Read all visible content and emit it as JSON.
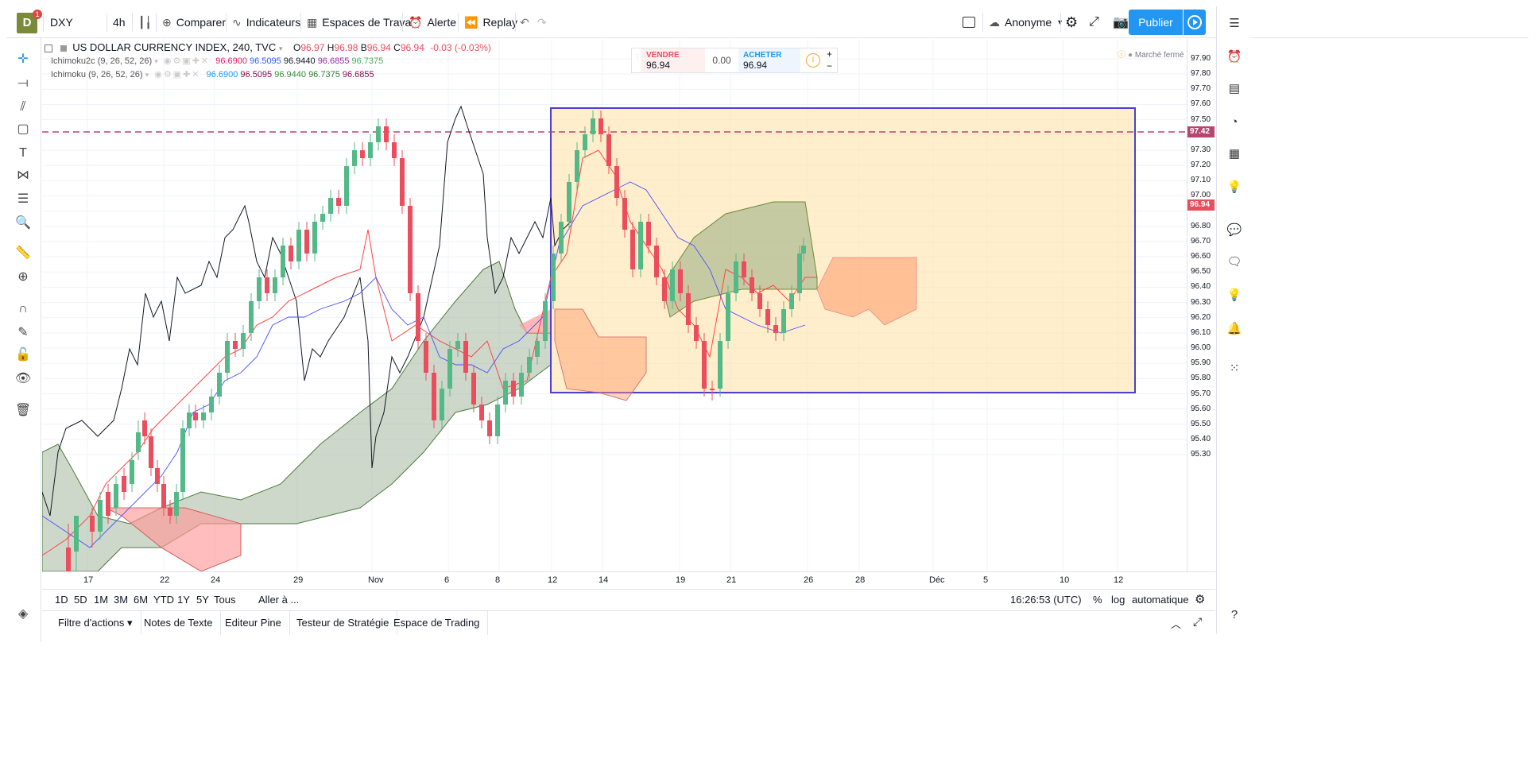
{
  "logo": {
    "letter": "D",
    "badge": "1"
  },
  "topbar": {
    "symbol": "DXY",
    "interval": "4h",
    "compare": "Comparer",
    "indicators": "Indicateurs",
    "workspaces": "Espaces de Travail",
    "alert": "Alerte",
    "replay": "Replay",
    "account": "Anonyme",
    "publish": "Publier"
  },
  "legend": {
    "title": "US DOLLAR CURRENCY INDEX, 240, TVC",
    "o_label": "O",
    "o": "96.97",
    "h_label": "H",
    "h": "96.98",
    "b_label": "B",
    "b": "96.94",
    "c_label": "C",
    "c": "96.94",
    "change": "-0.03 (-0.03%)",
    "ind1_name": "Ichimoku2c (9, 26, 52, 26)",
    "ind1_vals": [
      "96.6900",
      "96.5095",
      "96.9440",
      "96.6855",
      "96.7375"
    ],
    "ind2_name": "Ichimoku (9, 26, 52, 26)",
    "ind2_vals": [
      "96.6900",
      "96.5095",
      "96.9440",
      "96.7375",
      "96.6855"
    ]
  },
  "trade": {
    "sell_label": "VENDRE",
    "sell": "96.94",
    "spread": "0.00",
    "buy_label": "ACHETER",
    "buy": "96.94"
  },
  "market_status": "Marché fermé",
  "price_axis": {
    "labels": [
      "97.90",
      "97.80",
      "97.70",
      "97.60",
      "97.50",
      "97.30",
      "97.20",
      "97.10",
      "97.00",
      "96.80",
      "96.70",
      "96.60",
      "96.50",
      "96.40",
      "96.30",
      "96.20",
      "96.10",
      "96.00",
      "95.90",
      "95.80",
      "95.70",
      "95.60",
      "95.50",
      "95.40",
      "95.30"
    ],
    "hline_tag": "97.42",
    "last_tag": "96.94"
  },
  "time_axis": [
    "17",
    "22",
    "24",
    "29",
    "Nov",
    "6",
    "8",
    "12",
    "14",
    "19",
    "21",
    "26",
    "28",
    "Déc",
    "5",
    "10",
    "12"
  ],
  "range_bar": {
    "ranges": [
      "1D",
      "5D",
      "1M",
      "3M",
      "6M",
      "YTD",
      "1Y",
      "5Y",
      "Tous"
    ],
    "goto": "Aller à ...",
    "clock": "16:26:53 (UTC)",
    "percent": "%",
    "log": "log",
    "auto": "automatique"
  },
  "bottom_tabs": [
    "Filtre d'actions",
    "Notes de Texte",
    "Editeur Pine",
    "Testeur de Stratégie",
    "Espace de Trading"
  ],
  "colors": {
    "up": "#53b987",
    "down": "#eb4d5c",
    "accent": "#2196f3",
    "rect_border": "#4d3fd0",
    "rect_fill": "#ffe0a0",
    "hline": "#b5476f"
  }
}
